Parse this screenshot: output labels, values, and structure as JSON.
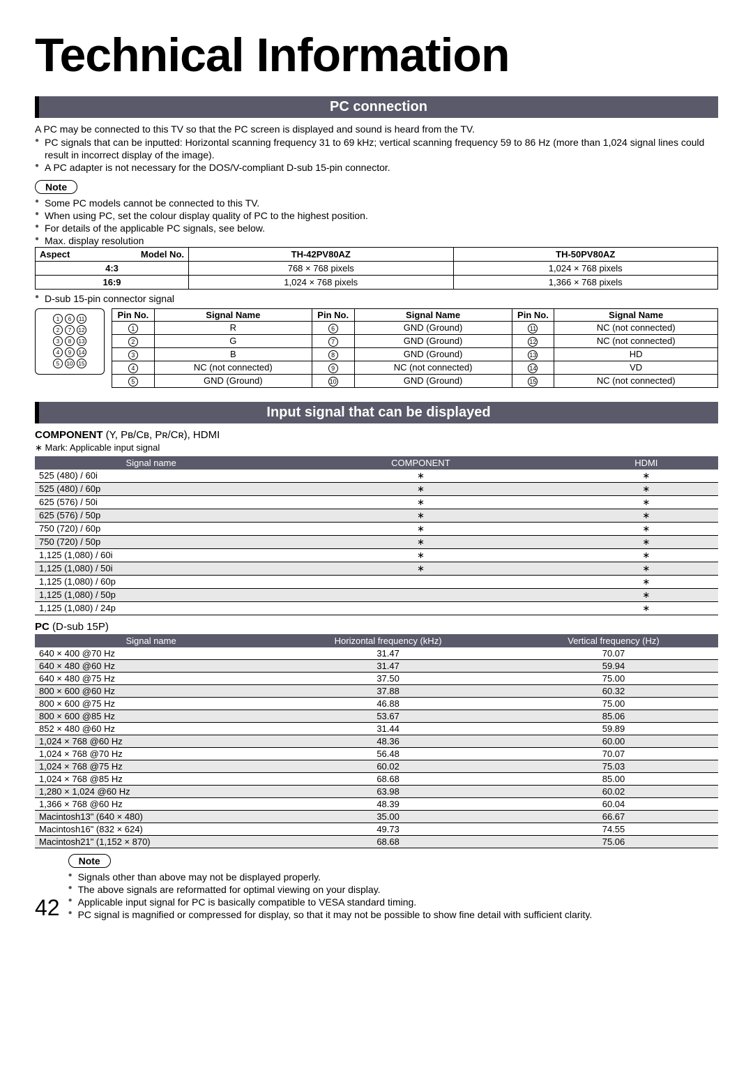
{
  "title": "Technical Information",
  "pc_connection": {
    "heading": "PC connection",
    "intro": "A PC may be connected to this TV so that the PC screen is displayed and sound is heard from the TV.",
    "bullets": [
      "PC signals that can be inputted: Horizontal scanning frequency 31 to 69 kHz; vertical scanning frequency 59 to 86 Hz (more than 1,024 signal lines could result in incorrect display of the image).",
      "A PC adapter is not necessary for the DOS/V-compliant D-sub 15-pin connector."
    ],
    "note_label": "Note",
    "notes": [
      "Some PC models cannot be connected to this TV.",
      "When using PC, set the colour display quality of PC to the highest position.",
      "For details of the applicable PC signals, see below.",
      "Max. display resolution"
    ],
    "res_table": {
      "aspect_hdr": "Aspect",
      "model_hdr": "Model No.",
      "model1": "TH-42PV80AZ",
      "model2": "TH-50PV80AZ",
      "rows": [
        {
          "aspect": "4:3",
          "m1": "768 × 768 pixels",
          "m2": "1,024 × 768 pixels"
        },
        {
          "aspect": "16:9",
          "m1": "1,024 × 768 pixels",
          "m2": "1,366 × 768 pixels"
        }
      ]
    },
    "dsub_label": "D-sub 15-pin connector signal",
    "pin_headers": {
      "pin": "Pin No.",
      "signal": "Signal Name"
    },
    "pins": [
      {
        "n": "1",
        "s": "R"
      },
      {
        "n": "6",
        "s": "GND (Ground)"
      },
      {
        "n": "11",
        "s": "NC (not connected)"
      },
      {
        "n": "2",
        "s": "G"
      },
      {
        "n": "7",
        "s": "GND (Ground)"
      },
      {
        "n": "12",
        "s": "NC (not connected)"
      },
      {
        "n": "3",
        "s": "B"
      },
      {
        "n": "8",
        "s": "GND (Ground)"
      },
      {
        "n": "13",
        "s": "HD"
      },
      {
        "n": "4",
        "s": "NC (not connected)"
      },
      {
        "n": "9",
        "s": "NC (not connected)"
      },
      {
        "n": "14",
        "s": "VD"
      },
      {
        "n": "5",
        "s": "GND (Ground)"
      },
      {
        "n": "10",
        "s": "GND (Ground)"
      },
      {
        "n": "15",
        "s": "NC (not connected)"
      }
    ]
  },
  "input_signal": {
    "heading": "Input signal that can be displayed",
    "component_title": "COMPONENT",
    "component_sub": " (Y, Pʙ/Cʙ, Pʀ/Cʀ), HDMI",
    "mark_note": "∗ Mark: Applicable input signal",
    "col_signal": "Signal name",
    "col_component": "COMPONENT",
    "col_hdmi": "HDMI",
    "rows": [
      {
        "name": "525 (480) / 60i",
        "c": "∗",
        "h": "∗",
        "shaded": false
      },
      {
        "name": "525 (480) / 60p",
        "c": "∗",
        "h": "∗",
        "shaded": true
      },
      {
        "name": "625 (576) / 50i",
        "c": "∗",
        "h": "∗",
        "shaded": false
      },
      {
        "name": "625 (576) / 50p",
        "c": "∗",
        "h": "∗",
        "shaded": true
      },
      {
        "name": "750 (720) / 60p",
        "c": "∗",
        "h": "∗",
        "shaded": false
      },
      {
        "name": "750 (720) / 50p",
        "c": "∗",
        "h": "∗",
        "shaded": true
      },
      {
        "name": "1,125 (1,080) / 60i",
        "c": "∗",
        "h": "∗",
        "shaded": false
      },
      {
        "name": "1,125 (1,080) / 50i",
        "c": "∗",
        "h": "∗",
        "shaded": true
      },
      {
        "name": "1,125 (1,080) / 60p",
        "c": "",
        "h": "∗",
        "shaded": false
      },
      {
        "name": "1,125 (1,080) / 50p",
        "c": "",
        "h": "∗",
        "shaded": true
      },
      {
        "name": "1,125 (1,080) / 24p",
        "c": "",
        "h": "∗",
        "shaded": false
      }
    ],
    "pc_title": "PC",
    "pc_sub": " (D-sub 15P)",
    "pc_col_hfreq": "Horizontal frequency (kHz)",
    "pc_col_vfreq": "Vertical frequency (Hz)",
    "pc_rows": [
      {
        "name": "640 × 400 @70 Hz",
        "h": "31.47",
        "v": "70.07",
        "shaded": false
      },
      {
        "name": "640 × 480 @60 Hz",
        "h": "31.47",
        "v": "59.94",
        "shaded": true
      },
      {
        "name": "640 × 480 @75 Hz",
        "h": "37.50",
        "v": "75.00",
        "shaded": false
      },
      {
        "name": "800 × 600 @60 Hz",
        "h": "37.88",
        "v": "60.32",
        "shaded": true
      },
      {
        "name": "800 × 600 @75 Hz",
        "h": "46.88",
        "v": "75.00",
        "shaded": false
      },
      {
        "name": "800 × 600 @85 Hz",
        "h": "53.67",
        "v": "85.06",
        "shaded": true
      },
      {
        "name": "852 × 480 @60 Hz",
        "h": "31.44",
        "v": "59.89",
        "shaded": false
      },
      {
        "name": "1,024 × 768 @60 Hz",
        "h": "48.36",
        "v": "60.00",
        "shaded": true
      },
      {
        "name": "1,024 × 768 @70 Hz",
        "h": "56.48",
        "v": "70.07",
        "shaded": false
      },
      {
        "name": "1,024 × 768 @75 Hz",
        "h": "60.02",
        "v": "75.03",
        "shaded": true
      },
      {
        "name": "1,024 × 768 @85 Hz",
        "h": "68.68",
        "v": "85.00",
        "shaded": false
      },
      {
        "name": "1,280 × 1,024 @60 Hz",
        "h": "63.98",
        "v": "60.02",
        "shaded": true
      },
      {
        "name": "1,366 × 768 @60 Hz",
        "h": "48.39",
        "v": "60.04",
        "shaded": false
      },
      {
        "name": "Macintosh13\" (640 × 480)",
        "h": "35.00",
        "v": "66.67",
        "shaded": true
      },
      {
        "name": "Macintosh16\" (832 × 624)",
        "h": "49.73",
        "v": "74.55",
        "shaded": false
      },
      {
        "name": "Macintosh21\" (1,152 × 870)",
        "h": "68.68",
        "v": "75.06",
        "shaded": true
      }
    ],
    "footer_note_label": "Note",
    "footer_notes": [
      "Signals other than above may not be displayed properly.",
      "The above signals are reformatted for optimal viewing on your display.",
      "Applicable input signal for PC is basically compatible to VESA standard timing.",
      "PC signal is magnified or compressed for display, so that it may not be possible to show fine detail with sufficient clarity."
    ]
  },
  "page_number": "42"
}
